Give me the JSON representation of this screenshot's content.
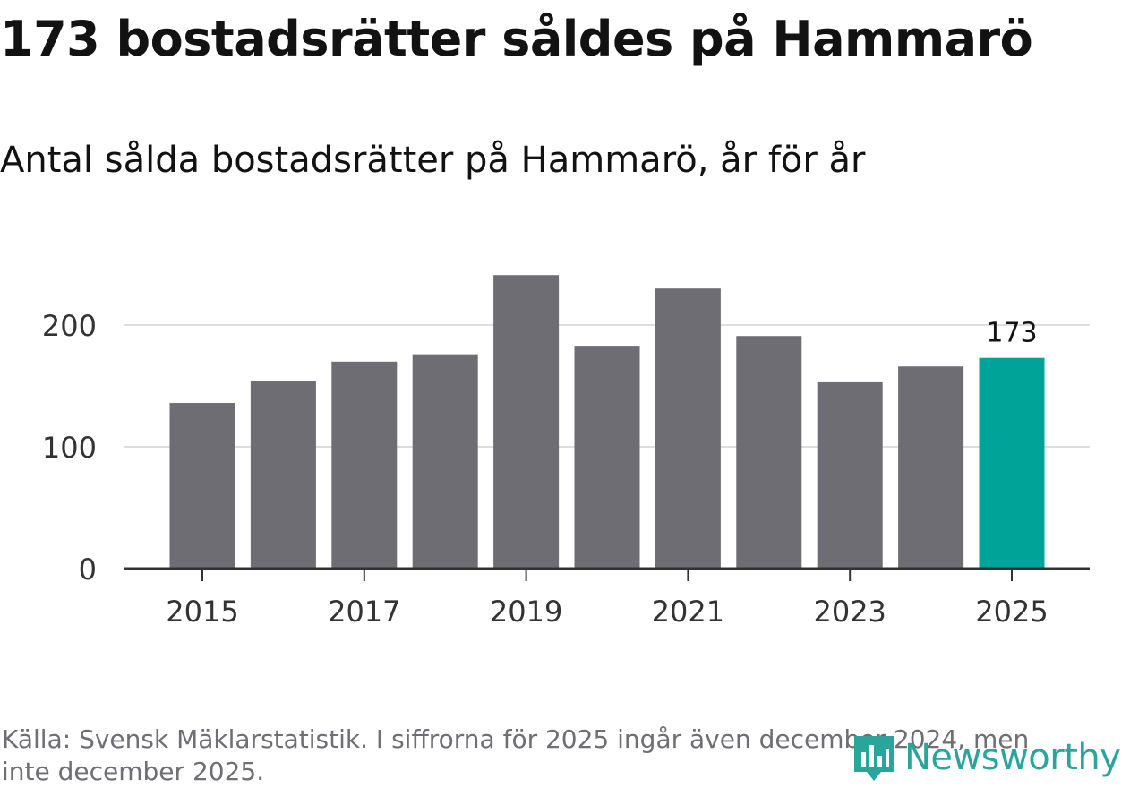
{
  "title": "173 bostadsrätter såldes på Hammarö",
  "subtitle": "Antal sålda bostadsrätter på Hammarö, år för år",
  "source": "Källa: Svensk Mäklarstatistik. I siffrorna för 2025 ingår även december 2024, men inte december 2025.",
  "logo": {
    "text": "Newsworthy",
    "icon": "newsworthy-logo-icon",
    "color": "#2aa59b"
  },
  "colors": {
    "bar": "#6e6d73",
    "highlight": "#00a397",
    "grid": "#dddddd",
    "axis": "#333333"
  },
  "chart_data": {
    "type": "bar",
    "title": "Antal sålda bostadsrätter på Hammarö, år för år",
    "xlabel": "",
    "ylabel": "",
    "categories": [
      "2015",
      "2016",
      "2017",
      "2018",
      "2019",
      "2020",
      "2021",
      "2022",
      "2023",
      "2024",
      "2025"
    ],
    "values": [
      136,
      154,
      170,
      176,
      241,
      183,
      230,
      191,
      153,
      166,
      173
    ],
    "highlight_index": 10,
    "highlight_label": "173",
    "ylim": [
      0,
      260
    ],
    "y_ticks": [
      0,
      100,
      200
    ],
    "x_tick_labels": [
      "2015",
      "2017",
      "2019",
      "2021",
      "2023",
      "2025"
    ],
    "grid": true
  }
}
